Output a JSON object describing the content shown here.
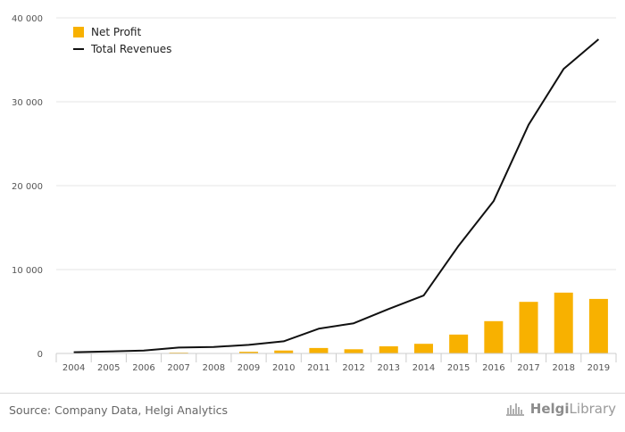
{
  "chart_data": {
    "type": "bar",
    "categories": [
      "2004",
      "2005",
      "2006",
      "2007",
      "2008",
      "2009",
      "2010",
      "2011",
      "2012",
      "2013",
      "2014",
      "2015",
      "2016",
      "2017",
      "2018",
      "2019"
    ],
    "series": [
      {
        "name": "Net Profit",
        "type": "bar",
        "color": "#f8b100",
        "values": [
          -30,
          -10,
          -20,
          100,
          -50,
          200,
          350,
          650,
          500,
          850,
          1150,
          2250,
          3850,
          6150,
          7250,
          6500
        ]
      },
      {
        "name": "Total Revenues",
        "type": "line",
        "color": "#111111",
        "values": [
          150,
          230,
          350,
          700,
          780,
          1020,
          1450,
          2950,
          3600,
          5300,
          6900,
          12850,
          18150,
          27250,
          33900,
          37450
        ]
      }
    ],
    "y_ticks": [
      "0",
      "10 000",
      "20 000",
      "30 000",
      "40 000"
    ],
    "ylim": [
      0,
      40000
    ],
    "grid": true,
    "legend_position": "top-left"
  },
  "footer": {
    "source": "Source: Company Data, Helgi Analytics",
    "brand_prefix": "Helgi",
    "brand_suffix": "Library",
    "brand_icon": "helgi-library-logo-icon"
  }
}
